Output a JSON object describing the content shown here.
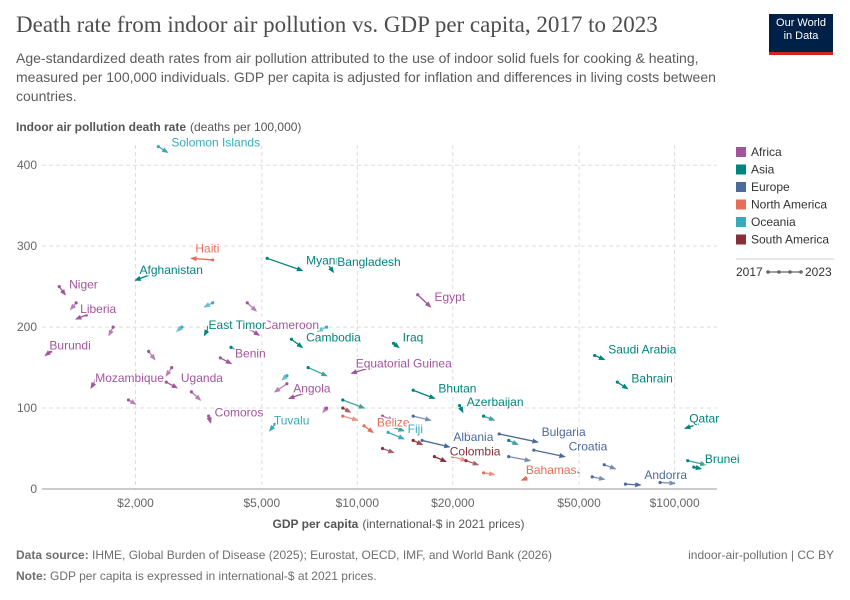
{
  "chart_data": {
    "type": "connected-scatter",
    "title": "Death rate from indoor air pollution vs. GDP per capita, 2017 to 2023",
    "subtitle": "Age-standardized death rates from air pollution attributed to the use of indoor solid fuels for cooking & heating, measured per 100,000 individuals. GDP per capita is adjusted for inflation and differences in living costs between countries.",
    "y_label": "Indoor air pollution death rate",
    "y_label_unit": "(deaths per 100,000)",
    "x_label": "GDP per capita",
    "x_label_unit": "(international-$ in 2021 prices)",
    "xscale": "log",
    "grid": true,
    "xlim": [
      1000,
      136000
    ],
    "ylim": [
      0,
      425
    ],
    "xticks": [
      {
        "value": 2000,
        "label": "$2,000"
      },
      {
        "value": 5000,
        "label": "$5,000"
      },
      {
        "value": 10000,
        "label": "$10,000"
      },
      {
        "value": 20000,
        "label": "$20,000"
      },
      {
        "value": 50000,
        "label": "$50,000"
      },
      {
        "value": 100000,
        "label": "$100,000"
      }
    ],
    "yticks": [
      0,
      100,
      200,
      300,
      400
    ],
    "time_legend": [
      "2017",
      "2023"
    ],
    "series": [
      {
        "name": "Africa",
        "color": "#a2559c",
        "countries": [
          {
            "label": "Niger",
            "x": [
              1150,
              1200
            ],
            "y": [
              250,
              240
            ]
          },
          {
            "label": "Liberia",
            "x": [
              1400,
              1300
            ],
            "y": [
              215,
              210
            ]
          },
          {
            "label": "Burundi",
            "x": [
              1080,
              1040
            ],
            "y": [
              170,
              165
            ]
          },
          {
            "label": "Mozambique",
            "x": [
              1500,
              1450
            ],
            "y": [
              135,
              125
            ]
          },
          {
            "label": "Uganda",
            "x": [
              2500,
              2700
            ],
            "y": [
              132,
              125
            ]
          },
          {
            "label": "Benin",
            "x": [
              3700,
              4000
            ],
            "y": [
              162,
              155
            ]
          },
          {
            "label": "Cameroon",
            "x": [
              4600,
              4900
            ],
            "y": [
              197,
              190
            ]
          },
          {
            "label": "Comoros",
            "x": [
              3400,
              3450
            ],
            "y": [
              90,
              82
            ]
          },
          {
            "label": "Angola",
            "x": [
              7000,
              6100
            ],
            "y": [
              120,
              112
            ]
          },
          {
            "label": "Equatorial Guinea",
            "x": [
              11000,
              9600
            ],
            "y": [
              150,
              143
            ]
          },
          {
            "label": "Egypt",
            "x": [
              15500,
              17000
            ],
            "y": [
              240,
              225
            ]
          },
          {
            "x": [
              1300,
              1250
            ],
            "y": [
              230,
              222
            ]
          },
          {
            "x": [
              1700,
              1650
            ],
            "y": [
              200,
              190
            ]
          },
          {
            "x": [
              2200,
              2300
            ],
            "y": [
              170,
              160
            ]
          },
          {
            "x": [
              2600,
              2500
            ],
            "y": [
              150,
              140
            ]
          },
          {
            "x": [
              3000,
              3200
            ],
            "y": [
              120,
              110
            ]
          },
          {
            "x": [
              1900,
              2000
            ],
            "y": [
              110,
              105
            ]
          },
          {
            "x": [
              4500,
              4800
            ],
            "y": [
              230,
              220
            ]
          },
          {
            "x": [
              6000,
              5500
            ],
            "y": [
              130,
              120
            ]
          },
          {
            "x": [
              8000,
              7800
            ],
            "y": [
              100,
              95
            ]
          },
          {
            "x": [
              12000,
              13000
            ],
            "y": [
              90,
              85
            ]
          }
        ]
      },
      {
        "name": "Asia",
        "color": "#00847e",
        "countries": [
          {
            "label": "Myanmar",
            "x": [
              5200,
              6700
            ],
            "y": [
              285,
              270
            ]
          },
          {
            "label": "Bangladesh",
            "x": [
              8000,
              8400
            ],
            "y": [
              280,
              268
            ]
          },
          {
            "label": "Afghanistan",
            "x": [
              2500,
              2000
            ],
            "y": [
              272,
              258
            ]
          },
          {
            "label": "East Timor",
            "x": [
              3400,
              3300
            ],
            "y": [
              200,
              190
            ]
          },
          {
            "label": "Cambodia",
            "x": [
              6200,
              6700
            ],
            "y": [
              185,
              175
            ]
          },
          {
            "label": "Iraq",
            "x": [
              13000,
              13500
            ],
            "y": [
              180,
              175
            ]
          },
          {
            "label": "Bhutan",
            "x": [
              15000,
              17500
            ],
            "y": [
              122,
              112
            ]
          },
          {
            "label": "Azerbaijan",
            "x": [
              21000,
              21500
            ],
            "y": [
              103,
              95
            ]
          },
          {
            "label": "Saudi Arabia",
            "x": [
              56000,
              60000
            ],
            "y": [
              165,
              160
            ]
          },
          {
            "label": "Bahrain",
            "x": [
              66000,
              71000
            ],
            "y": [
              132,
              124
            ]
          },
          {
            "label": "Qatar",
            "x": [
              118000,
              108000
            ],
            "y": [
              80,
              75
            ]
          },
          {
            "label": "Brunei",
            "x": [
              115000,
              121000
            ],
            "y": [
              27,
              25
            ]
          },
          {
            "x": [
              4000,
              4500
            ],
            "y": [
              175,
              165
            ]
          },
          {
            "x": [
              7000,
              8000
            ],
            "y": [
              150,
              140
            ]
          },
          {
            "x": [
              9000,
              10500
            ],
            "y": [
              110,
              100
            ]
          },
          {
            "x": [
              12000,
              14000
            ],
            "y": [
              80,
              72
            ]
          },
          {
            "x": [
              25000,
              27000
            ],
            "y": [
              90,
              85
            ]
          },
          {
            "x": [
              30000,
              32000
            ],
            "y": [
              60,
              55
            ]
          },
          {
            "x": [
              110000,
              125000
            ],
            "y": [
              35,
              30
            ]
          }
        ]
      },
      {
        "name": "Europe",
        "color": "#4c6a9c",
        "countries": [
          {
            "label": "Albania",
            "x": [
              16000,
              19500
            ],
            "y": [
              60,
              52
            ]
          },
          {
            "label": "Bulgaria",
            "x": [
              28000,
              37000
            ],
            "y": [
              68,
              58
            ]
          },
          {
            "label": "Croatia",
            "x": [
              36000,
              45000
            ],
            "y": [
              48,
              40
            ]
          },
          {
            "label": "Andorra",
            "x": [
              70000,
              78000
            ],
            "y": [
              6,
              5
            ]
          },
          {
            "x": [
              15000,
              17000
            ],
            "y": [
              90,
              85
            ]
          },
          {
            "x": [
              22000,
              25000
            ],
            "y": [
              70,
              60
            ]
          },
          {
            "x": [
              30000,
              35000
            ],
            "y": [
              40,
              35
            ]
          },
          {
            "x": [
              45000,
              50000
            ],
            "y": [
              25,
              20
            ]
          },
          {
            "x": [
              55000,
              60000
            ],
            "y": [
              15,
              12
            ]
          },
          {
            "x": [
              90000,
              100000
            ],
            "y": [
              8,
              7
            ]
          },
          {
            "x": [
              60000,
              65000
            ],
            "y": [
              30,
              25
            ]
          }
        ]
      },
      {
        "name": "North America",
        "color": "#e56e5a",
        "countries": [
          {
            "label": "Haiti",
            "x": [
              3500,
              3000
            ],
            "y": [
              283,
              285
            ]
          },
          {
            "label": "Belize",
            "x": [
              10500,
              11200
            ],
            "y": [
              78,
              70
            ]
          },
          {
            "label": "Bahamas",
            "x": [
              34000,
              33000
            ],
            "y": [
              13,
              11
            ]
          },
          {
            "x": [
              9000,
              10000
            ],
            "y": [
              90,
              85
            ]
          },
          {
            "x": [
              20000,
              22000
            ],
            "y": [
              40,
              35
            ]
          },
          {
            "x": [
              25000,
              27000
            ],
            "y": [
              20,
              18
            ]
          },
          {
            "x": [
              15000,
              16000
            ],
            "y": [
              60,
              55
            ]
          }
        ]
      },
      {
        "name": "Oceania",
        "color": "#38aaba",
        "countries": [
          {
            "label": "Solomon Islands",
            "x": [
              2360,
              2520
            ],
            "y": [
              423,
              416
            ]
          },
          {
            "label": "Tuvalu",
            "x": [
              5500,
              5300
            ],
            "y": [
              80,
              72
            ]
          },
          {
            "label": "Fiji",
            "x": [
              12500,
              14000
            ],
            "y": [
              70,
              62
            ]
          },
          {
            "x": [
              3500,
              3300
            ],
            "y": [
              230,
              225
            ]
          },
          {
            "x": [
              2800,
              2700
            ],
            "y": [
              200,
              195
            ]
          },
          {
            "x": [
              8000,
              7500
            ],
            "y": [
              200,
              195
            ]
          },
          {
            "x": [
              6000,
              5800
            ],
            "y": [
              140,
              135
            ]
          }
        ]
      },
      {
        "name": "South America",
        "color": "#883039",
        "countries": [
          {
            "label": "Colombia",
            "x": [
              17500,
              19000
            ],
            "y": [
              40,
              34
            ]
          },
          {
            "x": [
              12000,
              13000
            ],
            "y": [
              50,
              45
            ]
          },
          {
            "x": [
              15000,
              16000
            ],
            "y": [
              60,
              55
            ]
          },
          {
            "x": [
              22000,
              24000
            ],
            "y": [
              35,
              30
            ]
          },
          {
            "x": [
              9000,
              9500
            ],
            "y": [
              100,
              95
            ]
          }
        ]
      }
    ]
  },
  "logo": [
    "Our World",
    "in Data"
  ],
  "footer": {
    "source_label": "Data source:",
    "source": "IHME, Global Burden of Disease (2025); Eurostat, OECD, IMF, and World Bank (2026)",
    "license": "indoor-air-pollution | CC BY",
    "note_label": "Note:",
    "note": "GDP per capita is expressed in international-$ at 2021 prices."
  }
}
